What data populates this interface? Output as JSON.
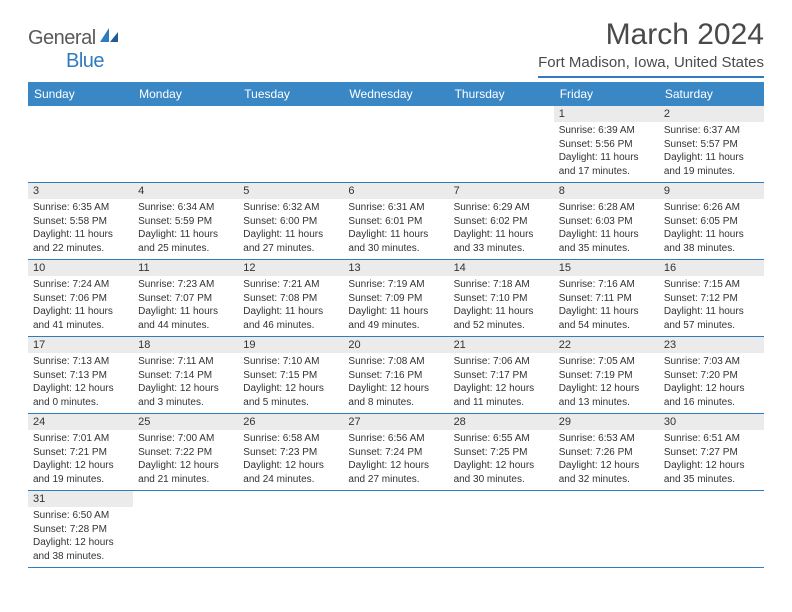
{
  "logo": {
    "text1": "General",
    "text2": "Blue"
  },
  "title": "March 2024",
  "location": "Fort Madison, Iowa, United States",
  "colors": {
    "header_bg": "#3a87c6",
    "accent": "#2f7bbf",
    "daynum_bg": "#ebebeb",
    "text": "#333333",
    "title_text": "#4a4a4a",
    "page_bg": "#ffffff"
  },
  "typography": {
    "title_fontsize": 30,
    "location_fontsize": 15,
    "dayheader_fontsize": 12,
    "daynum_fontsize": 11,
    "body_fontsize": 10
  },
  "dayHeaders": [
    "Sunday",
    "Monday",
    "Tuesday",
    "Wednesday",
    "Thursday",
    "Friday",
    "Saturday"
  ],
  "weeks": [
    [
      null,
      null,
      null,
      null,
      null,
      {
        "n": "1",
        "sr": "6:39 AM",
        "ss": "5:56 PM",
        "dl": "11 hours and 17 minutes."
      },
      {
        "n": "2",
        "sr": "6:37 AM",
        "ss": "5:57 PM",
        "dl": "11 hours and 19 minutes."
      }
    ],
    [
      {
        "n": "3",
        "sr": "6:35 AM",
        "ss": "5:58 PM",
        "dl": "11 hours and 22 minutes."
      },
      {
        "n": "4",
        "sr": "6:34 AM",
        "ss": "5:59 PM",
        "dl": "11 hours and 25 minutes."
      },
      {
        "n": "5",
        "sr": "6:32 AM",
        "ss": "6:00 PM",
        "dl": "11 hours and 27 minutes."
      },
      {
        "n": "6",
        "sr": "6:31 AM",
        "ss": "6:01 PM",
        "dl": "11 hours and 30 minutes."
      },
      {
        "n": "7",
        "sr": "6:29 AM",
        "ss": "6:02 PM",
        "dl": "11 hours and 33 minutes."
      },
      {
        "n": "8",
        "sr": "6:28 AM",
        "ss": "6:03 PM",
        "dl": "11 hours and 35 minutes."
      },
      {
        "n": "9",
        "sr": "6:26 AM",
        "ss": "6:05 PM",
        "dl": "11 hours and 38 minutes."
      }
    ],
    [
      {
        "n": "10",
        "sr": "7:24 AM",
        "ss": "7:06 PM",
        "dl": "11 hours and 41 minutes."
      },
      {
        "n": "11",
        "sr": "7:23 AM",
        "ss": "7:07 PM",
        "dl": "11 hours and 44 minutes."
      },
      {
        "n": "12",
        "sr": "7:21 AM",
        "ss": "7:08 PM",
        "dl": "11 hours and 46 minutes."
      },
      {
        "n": "13",
        "sr": "7:19 AM",
        "ss": "7:09 PM",
        "dl": "11 hours and 49 minutes."
      },
      {
        "n": "14",
        "sr": "7:18 AM",
        "ss": "7:10 PM",
        "dl": "11 hours and 52 minutes."
      },
      {
        "n": "15",
        "sr": "7:16 AM",
        "ss": "7:11 PM",
        "dl": "11 hours and 54 minutes."
      },
      {
        "n": "16",
        "sr": "7:15 AM",
        "ss": "7:12 PM",
        "dl": "11 hours and 57 minutes."
      }
    ],
    [
      {
        "n": "17",
        "sr": "7:13 AM",
        "ss": "7:13 PM",
        "dl": "12 hours and 0 minutes."
      },
      {
        "n": "18",
        "sr": "7:11 AM",
        "ss": "7:14 PM",
        "dl": "12 hours and 3 minutes."
      },
      {
        "n": "19",
        "sr": "7:10 AM",
        "ss": "7:15 PM",
        "dl": "12 hours and 5 minutes."
      },
      {
        "n": "20",
        "sr": "7:08 AM",
        "ss": "7:16 PM",
        "dl": "12 hours and 8 minutes."
      },
      {
        "n": "21",
        "sr": "7:06 AM",
        "ss": "7:17 PM",
        "dl": "12 hours and 11 minutes."
      },
      {
        "n": "22",
        "sr": "7:05 AM",
        "ss": "7:19 PM",
        "dl": "12 hours and 13 minutes."
      },
      {
        "n": "23",
        "sr": "7:03 AM",
        "ss": "7:20 PM",
        "dl": "12 hours and 16 minutes."
      }
    ],
    [
      {
        "n": "24",
        "sr": "7:01 AM",
        "ss": "7:21 PM",
        "dl": "12 hours and 19 minutes."
      },
      {
        "n": "25",
        "sr": "7:00 AM",
        "ss": "7:22 PM",
        "dl": "12 hours and 21 minutes."
      },
      {
        "n": "26",
        "sr": "6:58 AM",
        "ss": "7:23 PM",
        "dl": "12 hours and 24 minutes."
      },
      {
        "n": "27",
        "sr": "6:56 AM",
        "ss": "7:24 PM",
        "dl": "12 hours and 27 minutes."
      },
      {
        "n": "28",
        "sr": "6:55 AM",
        "ss": "7:25 PM",
        "dl": "12 hours and 30 minutes."
      },
      {
        "n": "29",
        "sr": "6:53 AM",
        "ss": "7:26 PM",
        "dl": "12 hours and 32 minutes."
      },
      {
        "n": "30",
        "sr": "6:51 AM",
        "ss": "7:27 PM",
        "dl": "12 hours and 35 minutes."
      }
    ],
    [
      {
        "n": "31",
        "sr": "6:50 AM",
        "ss": "7:28 PM",
        "dl": "12 hours and 38 minutes."
      },
      null,
      null,
      null,
      null,
      null,
      null
    ]
  ],
  "labels": {
    "sunrise": "Sunrise:",
    "sunset": "Sunset:",
    "daylight": "Daylight:"
  }
}
